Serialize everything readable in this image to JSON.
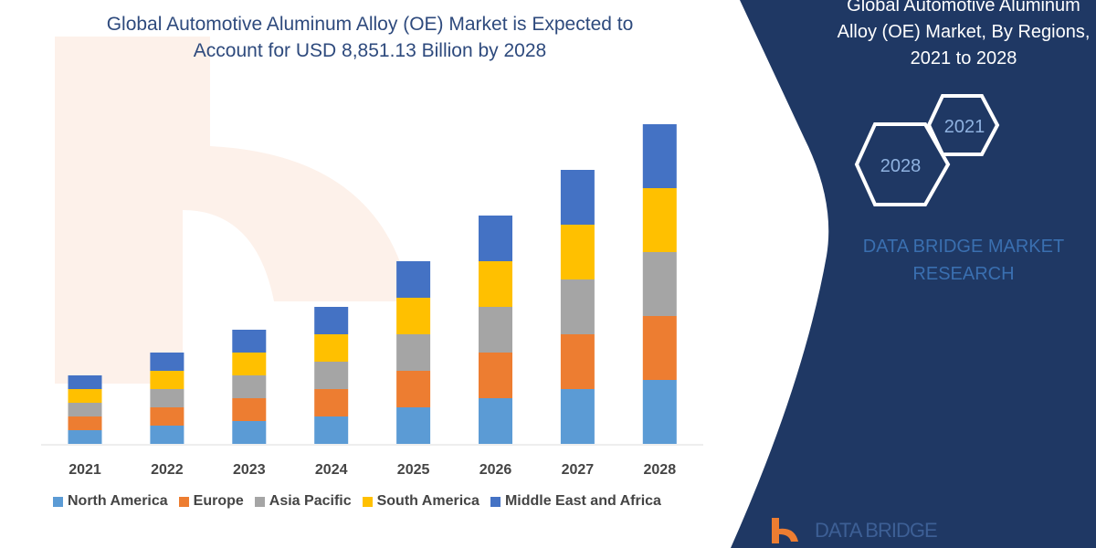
{
  "header": {
    "title_line1": "Global Automotive Aluminum Alloy (OE) Market is Expected to",
    "title_line2": "Account for USD 8,851.13 Billion by 2028"
  },
  "side_panel": {
    "title_line1": "Global Automotive Aluminum",
    "title_line2": "Alloy (OE) Market, By Regions,",
    "title_line3": "2021 to 2028",
    "hex_start": "2021",
    "hex_end": "2028",
    "brand_line1": "DATA BRIDGE MARKET",
    "brand_line2": "RESEARCH",
    "logo_text": "DATA BRIDGE",
    "background_color": "#1f3864"
  },
  "chart_data": {
    "type": "bar",
    "stacked": true,
    "title": "Global Automotive Aluminum Alloy (OE) Market is Expected to Account for USD 8,851.13 Billion by 2028",
    "xlabel": "",
    "ylabel": "",
    "y_axis_shown": false,
    "grid": false,
    "legend_position": "bottom",
    "categories": [
      "2021",
      "2022",
      "2023",
      "2024",
      "2025",
      "2026",
      "2027",
      "2028"
    ],
    "series": [
      {
        "name": "North America",
        "color": "#5b9bd5",
        "values": [
          15,
          20,
          25,
          30,
          40,
          50,
          60,
          70
        ]
      },
      {
        "name": "Europe",
        "color": "#ed7d31",
        "values": [
          15,
          20,
          25,
          30,
          40,
          50,
          60,
          70
        ]
      },
      {
        "name": "Asia Pacific",
        "color": "#a5a5a5",
        "values": [
          15,
          20,
          25,
          30,
          40,
          50,
          60,
          70
        ]
      },
      {
        "name": "South America",
        "color": "#ffc000",
        "values": [
          15,
          20,
          25,
          30,
          40,
          50,
          60,
          70
        ]
      },
      {
        "name": "Middle East and Africa",
        "color": "#4472c4",
        "values": [
          15,
          20,
          25,
          30,
          40,
          50,
          60,
          70
        ]
      }
    ]
  }
}
